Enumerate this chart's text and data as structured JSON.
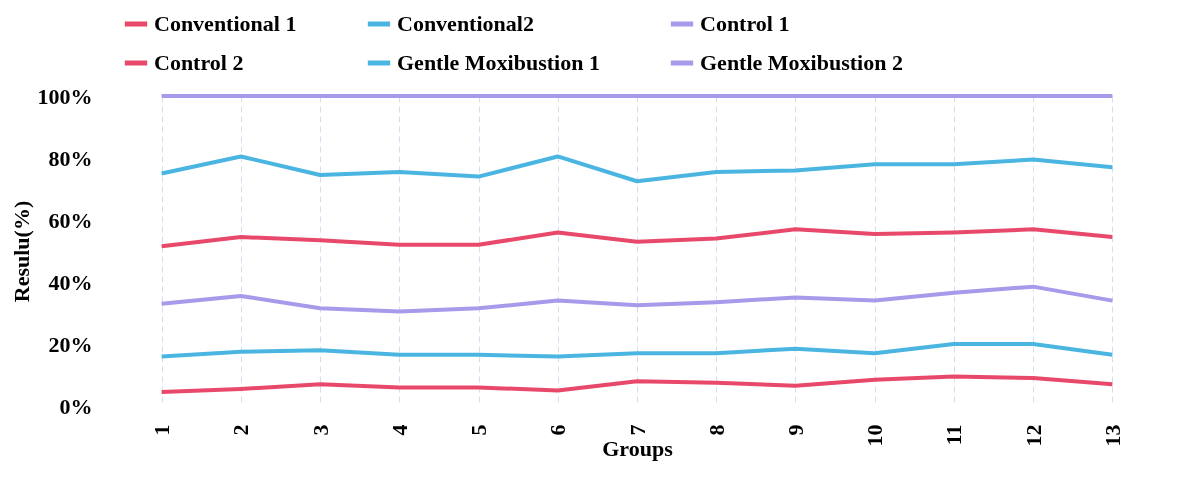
{
  "chart_data": {
    "type": "line",
    "xlabel": "Groups",
    "ylabel": "Resulu(%)",
    "categories": [
      "1",
      "2",
      "3",
      "4",
      "5",
      "6",
      "7",
      "8",
      "9",
      "10",
      "11",
      "12",
      "13"
    ],
    "ylim": [
      0,
      100
    ],
    "yticks": [
      {
        "value": 0,
        "label": "0%"
      },
      {
        "value": 20,
        "label": "20%"
      },
      {
        "value": 40,
        "label": "40%"
      },
      {
        "value": 60,
        "label": "60%"
      },
      {
        "value": 80,
        "label": "80%"
      },
      {
        "value": 100,
        "label": "100%"
      }
    ],
    "grid": "x",
    "legend": "top",
    "marker": "none",
    "line_style": "solid",
    "series": [
      {
        "name": "Conventional 1",
        "color": "#e8496a",
        "values": [
          4.5,
          5.5,
          7,
          6,
          6,
          5,
          8,
          7.5,
          6.5,
          8.5,
          9.5,
          9,
          7
        ]
      },
      {
        "name": "Conventional2",
        "color": "#4bb5e2",
        "values": [
          16,
          17.5,
          18,
          16.5,
          16.5,
          16,
          17,
          17,
          18.5,
          17,
          20,
          20,
          16.5
        ]
      },
      {
        "name": "Control 1",
        "color": "#a899ea",
        "values": [
          33,
          35.5,
          31.5,
          30.5,
          31.5,
          34,
          32.5,
          33.5,
          35,
          34,
          36.5,
          38.5,
          34
        ]
      },
      {
        "name": "Control 2",
        "color": "#e8496a",
        "values": [
          51.5,
          54.5,
          53.5,
          52,
          52,
          56,
          53,
          54,
          57,
          55.5,
          56,
          57,
          54.5
        ]
      },
      {
        "name": "Gentle Moxibustion 1",
        "color": "#4bb5e2",
        "values": [
          75,
          80.5,
          74.5,
          75.5,
          74,
          80.5,
          72.5,
          75.5,
          76,
          78,
          78,
          79.5,
          77
        ]
      },
      {
        "name": "Gentle Moxibustion 2",
        "color": "#a899ea",
        "values": [
          100,
          100,
          100,
          100,
          100,
          100,
          100,
          100,
          100,
          100,
          100,
          100,
          100
        ]
      }
    ]
  }
}
